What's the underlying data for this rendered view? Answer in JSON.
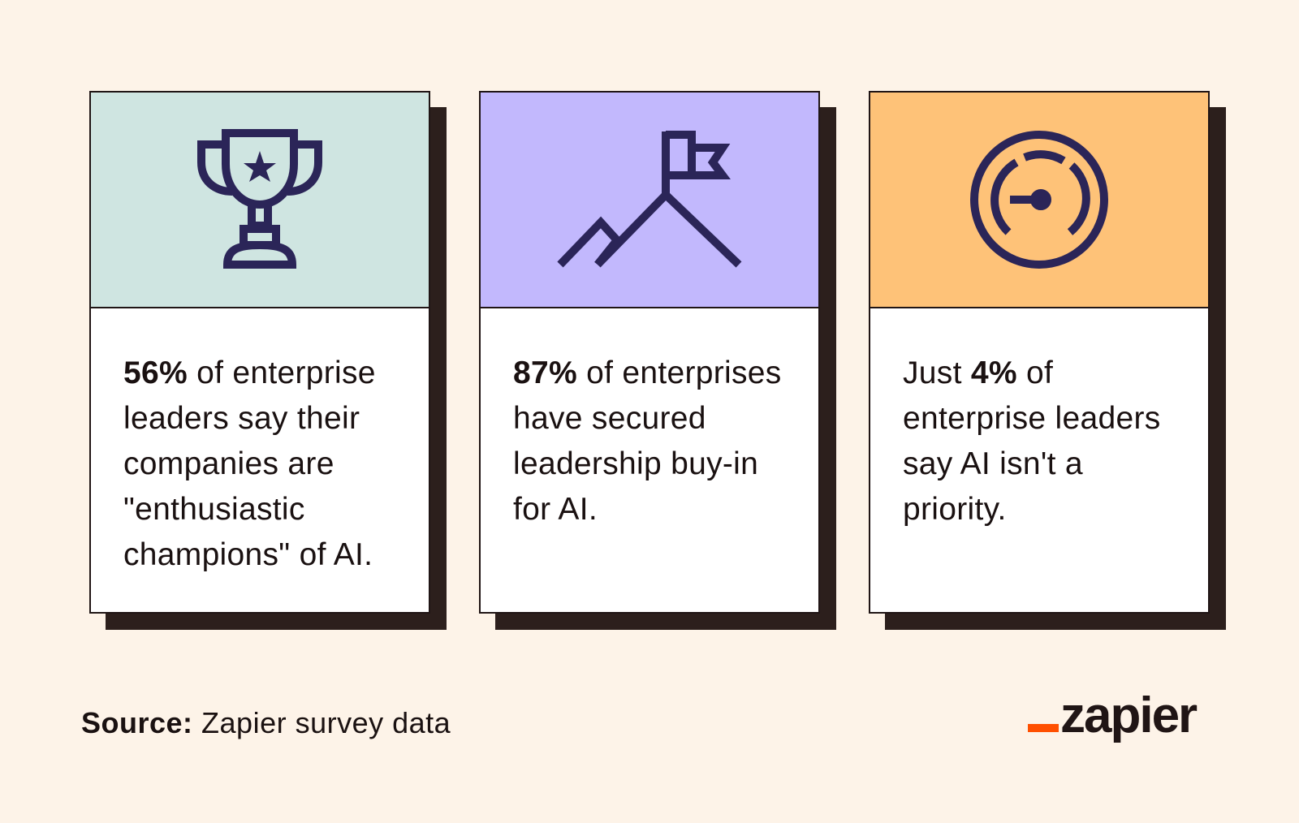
{
  "colors": {
    "background": "#fdf3e8",
    "card_1_header": "#cfe5e1",
    "card_2_header": "#c2b8fd",
    "card_3_header": "#fec278",
    "icon_color": "#2b2558",
    "shadow": "#2c1f1c",
    "brand_accent": "#ff4f00"
  },
  "cards": [
    {
      "icon": "trophy-icon",
      "prefix": "",
      "stat": "56%",
      "text": " of enterprise leaders say their companies are \"enthusiastic champions\" of AI."
    },
    {
      "icon": "mountain-flag-icon",
      "prefix": "",
      "stat": "87%",
      "text": " of enterprises have secured leadership buy-in for AI."
    },
    {
      "icon": "speedometer-icon",
      "prefix": "Just ",
      "stat": "4%",
      "text": " of enterprise leaders say AI isn't a priority."
    }
  ],
  "source": {
    "label": "Source:",
    "text": " Zapier survey data"
  },
  "logo": {
    "text": "zapier"
  }
}
